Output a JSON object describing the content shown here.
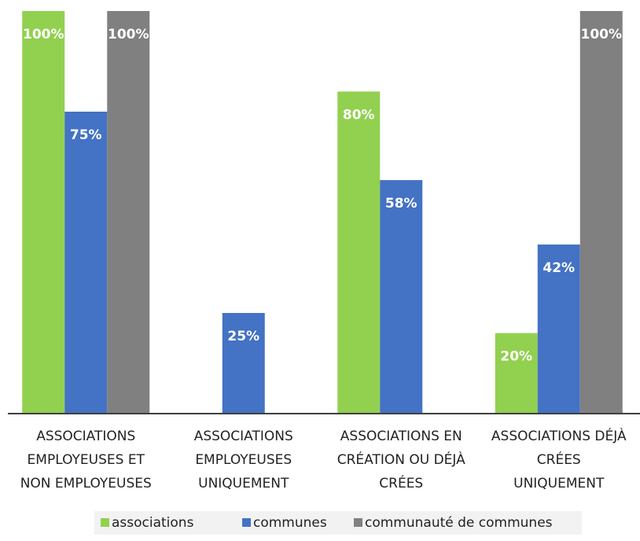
{
  "chart_data": {
    "type": "bar",
    "categories": [
      "ASSOCIATIONS\nEMPLOYEUSES ET\nNON EMPLOYEUSES",
      "ASSOCIATIONS\nEMPLOYEUSES\nUNIQUEMENT",
      "ASSOCIATIONS EN\nCRÉATION OU DÉJÀ\nCRÉES",
      "ASSOCIATIONS DÉJÀ\nCRÉES\nUNIQUEMENT"
    ],
    "series": [
      {
        "name": "associations",
        "color": "#92d050",
        "values": [
          100,
          null,
          80,
          20
        ],
        "value_labels": [
          "100%",
          null,
          "80%",
          "20%"
        ]
      },
      {
        "name": "communes",
        "color": "#4472c4",
        "values": [
          75,
          25,
          58,
          42
        ],
        "value_labels": [
          "75%",
          "25%",
          "58%",
          "42%"
        ]
      },
      {
        "name": "communauté de communes",
        "color": "#808080",
        "values": [
          100,
          null,
          null,
          100
        ],
        "value_labels": [
          "100%",
          null,
          null,
          "100%"
        ]
      }
    ],
    "ylim": [
      0,
      100
    ],
    "grid": false
  }
}
